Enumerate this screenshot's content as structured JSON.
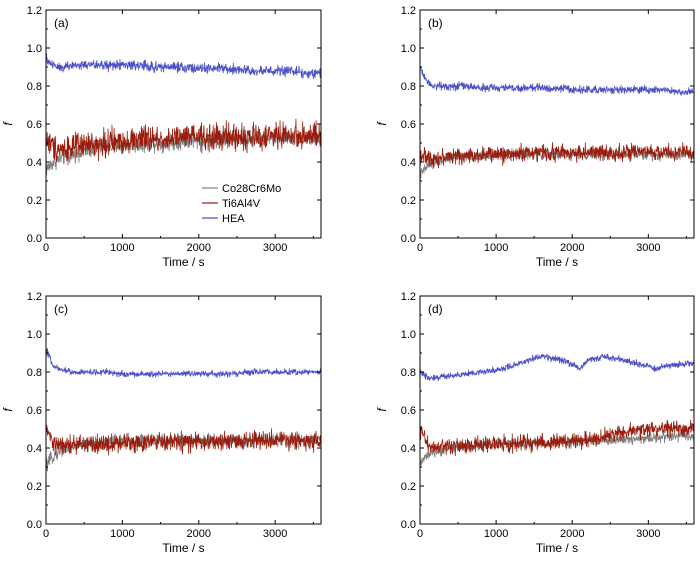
{
  "chart_data": [
    {
      "type": "line",
      "panel_label": "(a)",
      "xlabel": "Time / s",
      "ylabel": "f",
      "xlim": [
        0,
        3600
      ],
      "ylim": [
        0,
        1.2
      ],
      "xticks": [
        0,
        1000,
        2000,
        3000
      ],
      "yticks": [
        0.0,
        0.2,
        0.4,
        0.6,
        0.8,
        1.0,
        1.2
      ],
      "grid": false,
      "legend": "center-right",
      "series": [
        {
          "name": "Co28Cr6Mo",
          "color": "#808080",
          "x": [
            0,
            100,
            200,
            400,
            600,
            800,
            1000,
            1200,
            1400,
            1600,
            1800,
            2000,
            2200,
            2400,
            2600,
            2800,
            3000,
            3200,
            3400,
            3600
          ],
          "y": [
            0.36,
            0.4,
            0.42,
            0.45,
            0.47,
            0.48,
            0.49,
            0.49,
            0.5,
            0.5,
            0.51,
            0.51,
            0.51,
            0.52,
            0.52,
            0.52,
            0.53,
            0.53,
            0.53,
            0.52
          ],
          "noise": 0.03
        },
        {
          "name": "Ti6Al4V",
          "color": "#9b1c0c",
          "x": [
            0,
            100,
            200,
            400,
            600,
            800,
            1000,
            1200,
            1400,
            1600,
            1800,
            2000,
            2200,
            2400,
            2600,
            2800,
            3000,
            3200,
            3400,
            3600
          ],
          "y": [
            0.52,
            0.48,
            0.47,
            0.48,
            0.49,
            0.5,
            0.51,
            0.52,
            0.52,
            0.52,
            0.53,
            0.53,
            0.53,
            0.53,
            0.53,
            0.53,
            0.54,
            0.54,
            0.54,
            0.53
          ],
          "noise": 0.05
        },
        {
          "name": "HEA",
          "color": "#4b50c8",
          "x": [
            0,
            100,
            200,
            400,
            600,
            800,
            1000,
            1200,
            1400,
            1600,
            1800,
            2000,
            2200,
            2400,
            2600,
            2800,
            3000,
            3200,
            3400,
            3600
          ],
          "y": [
            0.94,
            0.91,
            0.9,
            0.91,
            0.91,
            0.91,
            0.91,
            0.91,
            0.9,
            0.9,
            0.9,
            0.89,
            0.89,
            0.89,
            0.88,
            0.88,
            0.88,
            0.88,
            0.87,
            0.87
          ],
          "noise": 0.02
        }
      ]
    },
    {
      "type": "line",
      "panel_label": "(b)",
      "xlabel": "Time / s",
      "ylabel": "f",
      "xlim": [
        0,
        3600
      ],
      "ylim": [
        0,
        1.2
      ],
      "xticks": [
        0,
        1000,
        2000,
        3000
      ],
      "yticks": [
        0.0,
        0.2,
        0.4,
        0.6,
        0.8,
        1.0,
        1.2
      ],
      "grid": false,
      "series": [
        {
          "name": "Co28Cr6Mo",
          "color": "#808080",
          "x": [
            0,
            100,
            200,
            400,
            600,
            800,
            1000,
            1200,
            1400,
            1600,
            1800,
            2000,
            2200,
            2400,
            2600,
            2800,
            3000,
            3200,
            3400,
            3600
          ],
          "y": [
            0.33,
            0.38,
            0.4,
            0.42,
            0.43,
            0.43,
            0.44,
            0.44,
            0.44,
            0.44,
            0.44,
            0.44,
            0.44,
            0.44,
            0.44,
            0.44,
            0.44,
            0.44,
            0.44,
            0.44
          ],
          "noise": 0.02
        },
        {
          "name": "Ti6Al4V",
          "color": "#9b1c0c",
          "x": [
            0,
            100,
            200,
            400,
            600,
            800,
            1000,
            1200,
            1400,
            1600,
            1800,
            2000,
            2200,
            2400,
            2600,
            2800,
            3000,
            3200,
            3400,
            3600
          ],
          "y": [
            0.44,
            0.42,
            0.42,
            0.43,
            0.43,
            0.44,
            0.44,
            0.44,
            0.45,
            0.45,
            0.45,
            0.45,
            0.45,
            0.45,
            0.45,
            0.45,
            0.45,
            0.45,
            0.45,
            0.45
          ],
          "noise": 0.03
        },
        {
          "name": "HEA",
          "color": "#4b50c8",
          "x": [
            0,
            100,
            200,
            400,
            600,
            800,
            1000,
            1200,
            1400,
            1600,
            1800,
            2000,
            2200,
            2400,
            2600,
            2800,
            3000,
            3200,
            3400,
            3600
          ],
          "y": [
            0.9,
            0.82,
            0.8,
            0.8,
            0.8,
            0.79,
            0.79,
            0.79,
            0.79,
            0.79,
            0.79,
            0.78,
            0.78,
            0.78,
            0.78,
            0.78,
            0.78,
            0.78,
            0.77,
            0.77
          ],
          "noise": 0.015
        }
      ]
    },
    {
      "type": "line",
      "panel_label": "(c)",
      "xlabel": "Time / s",
      "ylabel": "f",
      "xlim": [
        0,
        3600
      ],
      "ylim": [
        0,
        1.2
      ],
      "xticks": [
        0,
        1000,
        2000,
        3000
      ],
      "yticks": [
        0.0,
        0.2,
        0.4,
        0.6,
        0.8,
        1.0,
        1.2
      ],
      "grid": false,
      "series": [
        {
          "name": "Co28Cr6Mo",
          "color": "#808080",
          "x": [
            0,
            100,
            200,
            400,
            600,
            800,
            1000,
            1200,
            1400,
            1600,
            1800,
            2000,
            2200,
            2400,
            2600,
            2800,
            3000,
            3200,
            3400,
            3600
          ],
          "y": [
            0.3,
            0.36,
            0.39,
            0.41,
            0.42,
            0.43,
            0.44,
            0.44,
            0.44,
            0.44,
            0.44,
            0.44,
            0.44,
            0.44,
            0.44,
            0.44,
            0.44,
            0.44,
            0.44,
            0.44
          ],
          "noise": 0.025
        },
        {
          "name": "Ti6Al4V",
          "color": "#9b1c0c",
          "x": [
            0,
            100,
            200,
            400,
            600,
            800,
            1000,
            1200,
            1400,
            1600,
            1800,
            2000,
            2200,
            2400,
            2600,
            2800,
            3000,
            3200,
            3400,
            3600
          ],
          "y": [
            0.5,
            0.42,
            0.41,
            0.42,
            0.42,
            0.42,
            0.43,
            0.43,
            0.43,
            0.43,
            0.43,
            0.43,
            0.43,
            0.43,
            0.44,
            0.44,
            0.44,
            0.44,
            0.44,
            0.44
          ],
          "noise": 0.035
        },
        {
          "name": "HEA",
          "color": "#4b50c8",
          "x": [
            0,
            100,
            200,
            400,
            600,
            800,
            1000,
            1200,
            1400,
            1600,
            1800,
            2000,
            2200,
            2400,
            2600,
            2800,
            3000,
            3200,
            3400,
            3600
          ],
          "y": [
            0.92,
            0.83,
            0.81,
            0.8,
            0.8,
            0.8,
            0.79,
            0.79,
            0.79,
            0.79,
            0.79,
            0.79,
            0.79,
            0.79,
            0.8,
            0.8,
            0.8,
            0.8,
            0.8,
            0.8
          ],
          "noise": 0.012
        }
      ]
    },
    {
      "type": "line",
      "panel_label": "(d)",
      "xlabel": "Time / s",
      "ylabel": "f",
      "xlim": [
        0,
        3600
      ],
      "ylim": [
        0,
        1.2
      ],
      "xticks": [
        0,
        1000,
        2000,
        3000
      ],
      "yticks": [
        0.0,
        0.2,
        0.4,
        0.6,
        0.8,
        1.0,
        1.2
      ],
      "grid": false,
      "series": [
        {
          "name": "Co28Cr6Mo",
          "color": "#808080",
          "x": [
            0,
            100,
            200,
            400,
            600,
            800,
            1000,
            1200,
            1400,
            1600,
            1800,
            2000,
            2200,
            2400,
            2600,
            2800,
            3000,
            3200,
            3400,
            3600
          ],
          "y": [
            0.32,
            0.36,
            0.38,
            0.4,
            0.41,
            0.41,
            0.42,
            0.42,
            0.42,
            0.43,
            0.43,
            0.43,
            0.44,
            0.44,
            0.44,
            0.45,
            0.45,
            0.46,
            0.46,
            0.46
          ],
          "noise": 0.02
        },
        {
          "name": "Ti6Al4V",
          "color": "#9b1c0c",
          "x": [
            0,
            100,
            200,
            400,
            600,
            800,
            1000,
            1200,
            1400,
            1600,
            1800,
            2000,
            2200,
            2400,
            2600,
            2800,
            3000,
            3200,
            3400,
            3600
          ],
          "y": [
            0.5,
            0.42,
            0.4,
            0.41,
            0.41,
            0.42,
            0.42,
            0.42,
            0.43,
            0.43,
            0.43,
            0.44,
            0.44,
            0.46,
            0.48,
            0.49,
            0.5,
            0.51,
            0.5,
            0.5
          ],
          "noise": 0.03
        },
        {
          "name": "HEA",
          "color": "#4b50c8",
          "x": [
            0,
            100,
            200,
            400,
            600,
            800,
            1000,
            1200,
            1400,
            1600,
            1800,
            2000,
            2100,
            2200,
            2400,
            2600,
            2800,
            3000,
            3100,
            3200,
            3400,
            3600
          ],
          "y": [
            0.8,
            0.77,
            0.77,
            0.78,
            0.79,
            0.8,
            0.81,
            0.83,
            0.86,
            0.88,
            0.87,
            0.84,
            0.82,
            0.86,
            0.88,
            0.87,
            0.85,
            0.83,
            0.81,
            0.83,
            0.84,
            0.85
          ],
          "noise": 0.012
        }
      ]
    }
  ]
}
